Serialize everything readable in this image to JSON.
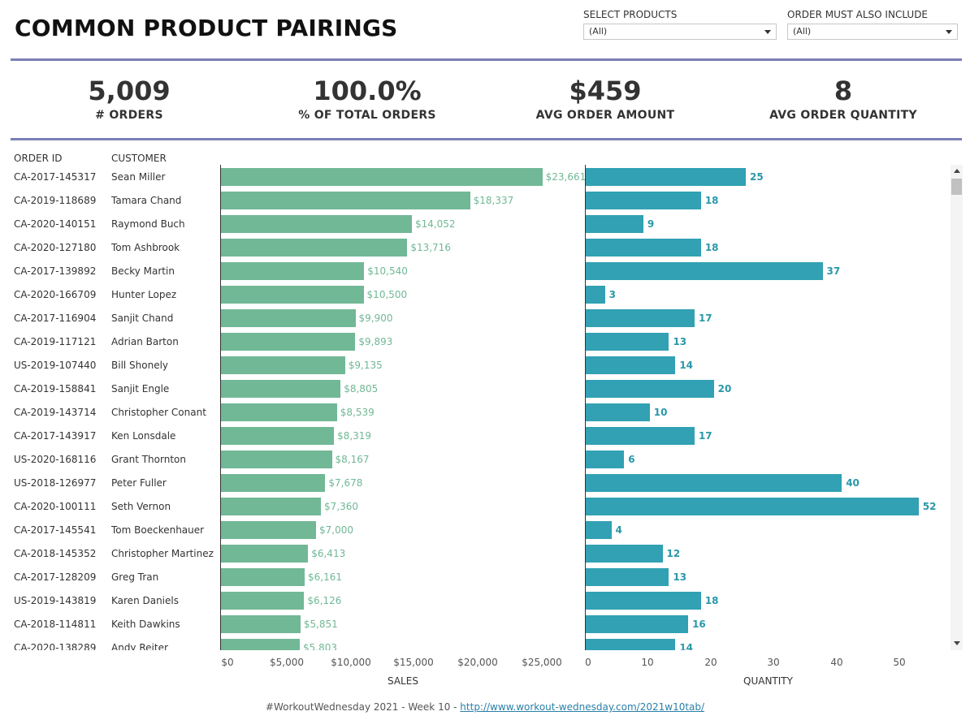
{
  "title": "COMMON PRODUCT PAIRINGS",
  "filters": [
    {
      "label": "SELECT PRODUCTS",
      "value": "(All)"
    },
    {
      "label": "ORDER MUST ALSO INCLUDE",
      "value": "(All)"
    }
  ],
  "kpis": [
    {
      "value": "5,009",
      "label": "# ORDERS"
    },
    {
      "value": "100.0%",
      "label": "% OF TOTAL ORDERS"
    },
    {
      "value": "$459",
      "label": "AVG ORDER AMOUNT"
    },
    {
      "value": "8",
      "label": "AVG ORDER QUANTITY"
    }
  ],
  "table": {
    "order_header": "ORDER ID",
    "customer_header": "CUSTOMER"
  },
  "chart_data": [
    {
      "type": "bar",
      "orientation": "horizontal",
      "xlabel": "SALES",
      "xlim": [
        0,
        25000
      ],
      "xticks": [
        "$0",
        "$5,000",
        "$10,000",
        "$15,000",
        "$20,000",
        "$25,000"
      ],
      "categories": [
        "CA-2017-145317",
        "CA-2019-118689",
        "CA-2020-140151",
        "CA-2020-127180",
        "CA-2017-139892",
        "CA-2020-166709",
        "CA-2017-116904",
        "CA-2019-117121",
        "US-2019-107440",
        "CA-2019-158841",
        "CA-2019-143714",
        "CA-2017-143917",
        "US-2020-168116",
        "US-2018-126977",
        "CA-2020-100111",
        "CA-2017-145541",
        "CA-2018-145352",
        "CA-2017-128209",
        "US-2019-143819",
        "CA-2018-114811",
        "CA-2020-138289"
      ],
      "customers": [
        "Sean Miller",
        "Tamara Chand",
        "Raymond Buch",
        "Tom Ashbrook",
        "Becky Martin",
        "Hunter Lopez",
        "Sanjit Chand",
        "Adrian Barton",
        "Bill Shonely",
        "Sanjit Engle",
        "Christopher Conant",
        "Ken Lonsdale",
        "Grant Thornton",
        "Peter Fuller",
        "Seth Vernon",
        "Tom Boeckenhauer",
        "Christopher Martinez",
        "Greg Tran",
        "Karen Daniels",
        "Keith Dawkins",
        "Andy Reiter"
      ],
      "values": [
        23661,
        18337,
        14052,
        13716,
        10540,
        10500,
        9900,
        9893,
        9135,
        8805,
        8539,
        8319,
        8167,
        7678,
        7360,
        7000,
        6413,
        6161,
        6126,
        5851,
        5803
      ],
      "labels": [
        "$23,661",
        "$18,337",
        "$14,052",
        "$13,716",
        "$10,540",
        "$10,500",
        "$9,900",
        "$9,893",
        "$9,135",
        "$8,805",
        "$8,539",
        "$8,319",
        "$8,167",
        "$7,678",
        "$7,360",
        "$7,000",
        "$6,413",
        "$6,161",
        "$6,126",
        "$5,851",
        "$5,803"
      ],
      "color": "#71b896"
    },
    {
      "type": "bar",
      "orientation": "horizontal",
      "xlabel": "QUANTITY",
      "xlim": [
        0,
        55
      ],
      "xticks": [
        "0",
        "10",
        "20",
        "30",
        "40",
        "50"
      ],
      "values": [
        25,
        18,
        9,
        18,
        37,
        3,
        17,
        13,
        14,
        20,
        10,
        17,
        6,
        40,
        52,
        4,
        12,
        13,
        18,
        16,
        14
      ],
      "color": "#31a1b3"
    }
  ],
  "footer": {
    "text": "#WorkoutWednesday 2021 - Week 10 - ",
    "link": "http://www.workout-wednesday.com/2021w10tab/"
  }
}
